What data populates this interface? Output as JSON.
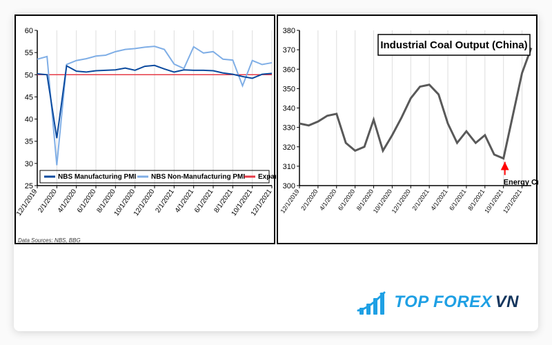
{
  "layout": {
    "card_bg": "#ffffff",
    "page_bg": "#fafafa"
  },
  "palette": {
    "mfg_pmi": "#0b4a9e",
    "nonmfg_pmi": "#7faee6",
    "expansion_line": "#e63946",
    "coal_line": "#595959",
    "grid": "#dddddd",
    "axis": "#000000",
    "arrow": "#ff0000",
    "logo_blue": "#1fa0e4",
    "logo_navy": "#14355d"
  },
  "left_chart": {
    "type": "line",
    "title": null,
    "y": {
      "min": 25,
      "max": 60,
      "step": 5
    },
    "x_labels": [
      "12/1/2019",
      "2/1/2020",
      "4/1/2020",
      "6/1/2020",
      "8/1/2020",
      "10/1/2020",
      "12/1/2020",
      "2/1/2021",
      "4/1/2021",
      "6/1/2021",
      "8/1/2021",
      "10/1/2021",
      "12/1/2021"
    ],
    "series": {
      "mfg": {
        "name": "NBS Manufacturing PMI",
        "values": [
          50.2,
          50.0,
          35.7,
          52.0,
          50.8,
          50.6,
          50.9,
          51.0,
          51.1,
          51.5,
          51.0,
          51.9,
          52.1,
          51.3,
          50.6,
          51.1,
          51.0,
          51.0,
          50.9,
          50.4,
          50.1,
          49.6,
          49.2,
          50.1,
          50.3
        ]
      },
      "nonmfg": {
        "name": "NBS Non-Manufacturing PMI",
        "values": [
          53.5,
          54.1,
          29.6,
          52.3,
          53.2,
          53.6,
          54.2,
          54.4,
          55.2,
          55.7,
          55.9,
          56.2,
          56.4,
          55.7,
          52.4,
          51.4,
          56.3,
          54.9,
          55.2,
          53.5,
          53.3,
          47.5,
          53.2,
          52.3,
          52.7
        ]
      },
      "expansion": {
        "name": "Expansion/Contraction",
        "value": 50
      }
    },
    "legend": {
      "items": [
        {
          "key": "mfg",
          "label": "NBS Manufacturing PMI"
        },
        {
          "key": "nonmfg",
          "label": "NBS Non-Manufacturing PMI"
        },
        {
          "key": "expansion",
          "label": "Expansion/Contraction"
        }
      ]
    },
    "source": "Data Sources: NBS, BBG"
  },
  "right_chart": {
    "type": "line",
    "title": "Industrial Coal Output (China)",
    "y": {
      "min": 300,
      "max": 380,
      "step": 10
    },
    "x_labels": [
      "12/1/2019",
      "2/1/2020",
      "4/1/2020",
      "6/1/2020",
      "8/1/2020",
      "10/1/2020",
      "12/1/2020",
      "2/1/2021",
      "4/1/2021",
      "6/1/2021",
      "8/1/2021",
      "10/1/2021",
      "12/1/2021"
    ],
    "series": {
      "coal": {
        "name": "Industrial Coal Output",
        "values": [
          332,
          331,
          333,
          336,
          337,
          322,
          318,
          320,
          334,
          318,
          326,
          335,
          345,
          351,
          352,
          347,
          332,
          322,
          328,
          322,
          326,
          316,
          314,
          336,
          358,
          371
        ]
      }
    },
    "annotation": {
      "text": "Energy Crunch",
      "arrow_target_index": 22,
      "arrow_color": "#ff0000"
    }
  },
  "logo": {
    "brand_a": "TOP FOREX",
    "brand_b": "VN"
  }
}
